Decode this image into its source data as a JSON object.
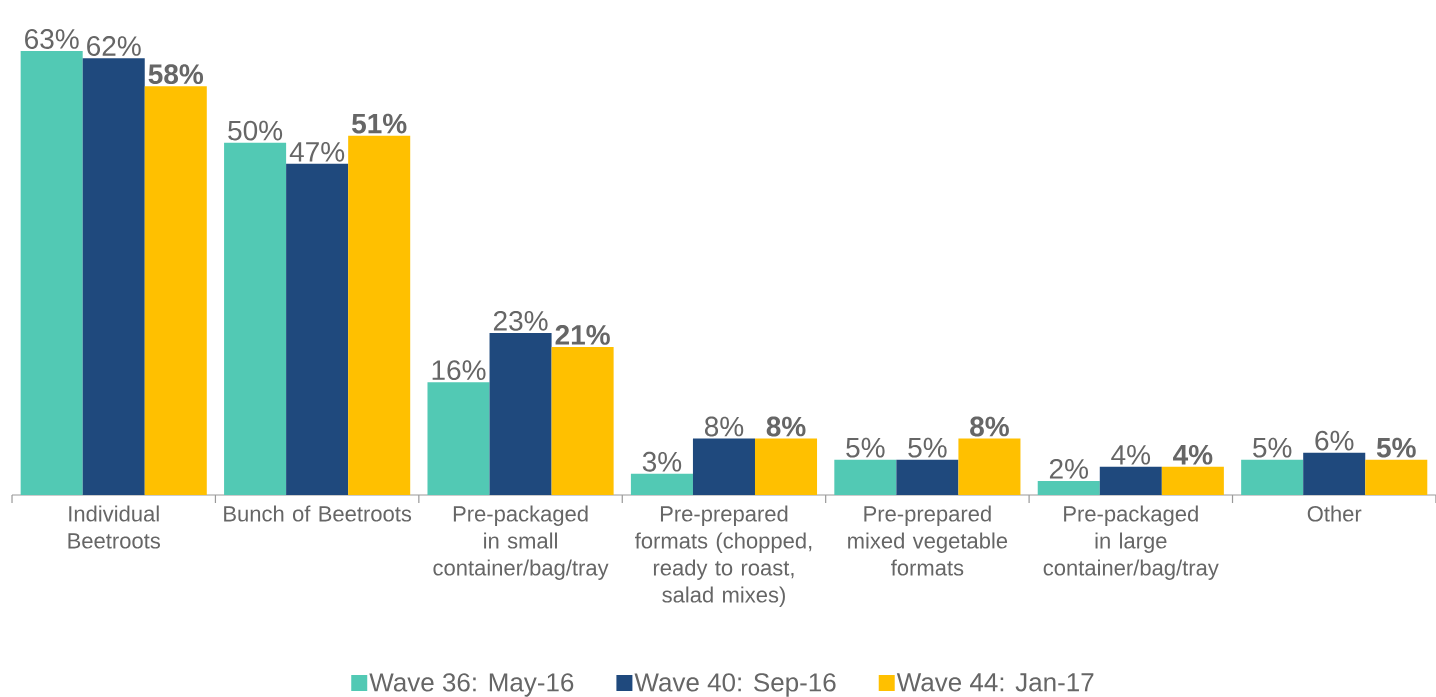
{
  "chart_data": {
    "type": "bar",
    "categories": [
      "Individual Beetroots",
      "Bunch of Beetroots",
      "Pre-packaged in small container/bag/tray",
      "Pre-prepared formats (chopped, ready to roast, salad mixes)",
      "Pre-prepared mixed vegetable formats",
      "Pre-packaged in large container/bag/tray",
      "Other"
    ],
    "series": [
      {
        "name": "Wave 36: May-16",
        "color": "#52c9b4",
        "values": [
          63,
          50,
          16,
          3,
          5,
          2,
          5
        ],
        "value_labels": [
          "63%",
          "50%",
          "16%",
          "3%",
          "5%",
          "2%",
          "5%"
        ]
      },
      {
        "name": "Wave 40: Sep-16",
        "color": "#1f497d",
        "values": [
          62,
          47,
          23,
          8,
          5,
          4,
          6
        ],
        "value_labels": [
          "62%",
          "47%",
          "23%",
          "8%",
          "5%",
          "4%",
          "6%"
        ]
      },
      {
        "name": "Wave 44: Jan-17",
        "color": "#ffc000",
        "values": [
          58,
          51,
          21,
          8,
          8,
          4,
          5
        ],
        "value_labels": [
          "58%",
          "51%",
          "21%",
          "8%",
          "8%",
          "4%",
          "5%"
        ]
      }
    ],
    "legend": "bottom"
  }
}
